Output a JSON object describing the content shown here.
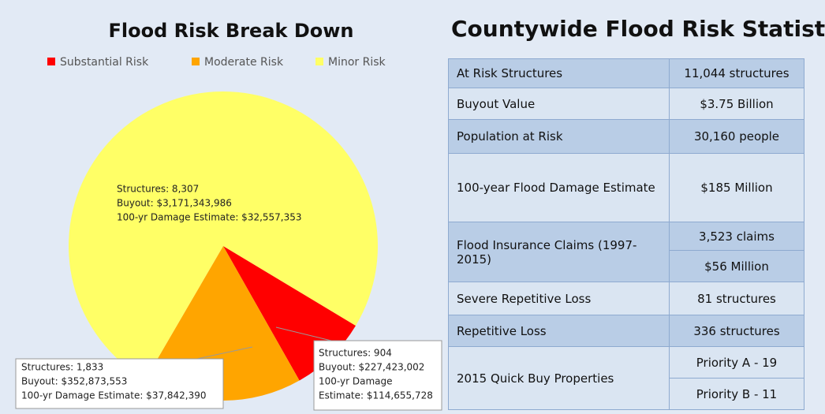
{
  "chart_data": {
    "type": "pie",
    "title": "Flood Risk Break Down",
    "categories": [
      "Substantial Risk",
      "Moderate Risk",
      "Minor Risk"
    ],
    "values": [
      904,
      1833,
      8307
    ],
    "colors": [
      "#ff0000",
      "#ffa500",
      "#ffff66"
    ],
    "legend": "top",
    "annotations": [
      [
        "Structures: 904",
        "Buyout: $227,423,002",
        "100-yr Damage",
        "Estimate: $114,655,728"
      ],
      [
        "Structures: 1,833",
        "Buyout: $352,873,553",
        "100-yr Damage Estimate: $37,842,390"
      ],
      [
        "Structures: 8,307",
        "Buyout: $3,171,343,986",
        "100-yr Damage Estimate: $32,557,353"
      ]
    ]
  },
  "table": {
    "title": "Countywide Flood Risk Statistics",
    "rows": [
      {
        "label": "At Risk Structures",
        "values": [
          "11,044 structures"
        ]
      },
      {
        "label": "Buyout Value",
        "values": [
          "$3.75 Billion"
        ]
      },
      {
        "label": "Population at Risk",
        "values": [
          "30,160 people"
        ]
      },
      {
        "label": "100-year Flood Damage Estimate",
        "values": [
          "$185 Million"
        ]
      },
      {
        "label": "Flood Insurance Claims (1997-2015)",
        "values": [
          "3,523 claims",
          "$56 Million"
        ]
      },
      {
        "label": "Severe Repetitive Loss",
        "values": [
          "81 structures"
        ]
      },
      {
        "label": "Repetitive Loss",
        "values": [
          "336 structures"
        ]
      },
      {
        "label": "2015 Quick Buy Properties",
        "values": [
          "Priority A - 19",
          "Priority B - 11"
        ]
      }
    ]
  }
}
